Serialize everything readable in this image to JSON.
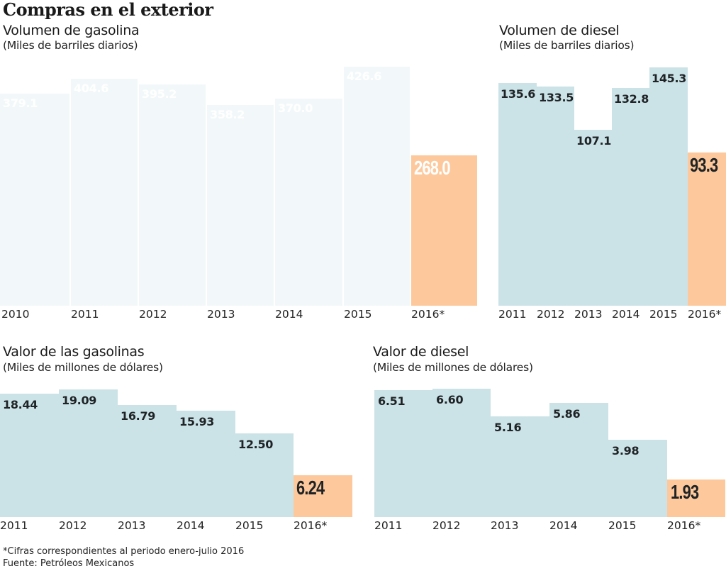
{
  "page": {
    "title": "Compras en el exterior",
    "footnote": "*Cifras correspondientes al periodo enero-julio 2016",
    "source": "Fuente: Petróleos Mexicanos"
  },
  "colors": {
    "historical": "#cbe3e7",
    "partial_year": "#fdc99c",
    "label_dark": "#1f2326",
    "label_light": "#ffffff"
  },
  "chart_data": [
    {
      "id": "gasoline_volume",
      "type": "bar",
      "title": "Volumen de gasolina",
      "subtitle": "(Miles de barriles diarios)",
      "xlabel": "",
      "ylabel": "Miles de barriles diarios",
      "categories": [
        "2010",
        "2011",
        "2012",
        "2013",
        "2014",
        "2015",
        "2016*"
      ],
      "values": [
        379.1,
        404.6,
        395.2,
        358.2,
        370.0,
        426.6,
        268.0
      ],
      "labels": [
        "379.1",
        "404.6",
        "395.2",
        "358.2",
        "370.0",
        "426.6",
        "268.0"
      ],
      "highlight_index": 6,
      "background": "photo",
      "grid": false,
      "legend": "none"
    },
    {
      "id": "diesel_volume",
      "type": "bar",
      "title": "Volumen de diesel",
      "subtitle": "(Miles de barriles diarios)",
      "xlabel": "",
      "ylabel": "Miles de barriles diarios",
      "categories": [
        "2011",
        "2012",
        "2013",
        "2014",
        "2015",
        "2016*"
      ],
      "values": [
        135.6,
        133.5,
        107.1,
        132.8,
        145.3,
        93.3
      ],
      "labels": [
        "135.6",
        "133.5",
        "107.1",
        "132.8",
        "145.3",
        "93.3"
      ],
      "highlight_index": 5,
      "grid": false,
      "legend": "none"
    },
    {
      "id": "gasoline_value",
      "type": "bar",
      "title": "Valor de las gasolinas",
      "subtitle": "(Miles de millones de dólares)",
      "xlabel": "",
      "ylabel": "Miles de millones de dólares",
      "categories": [
        "2011",
        "2012",
        "2013",
        "2014",
        "2015",
        "2016*"
      ],
      "values": [
        18.44,
        19.09,
        16.79,
        15.93,
        12.5,
        6.24
      ],
      "labels": [
        "18.44",
        "19.09",
        "16.79",
        "15.93",
        "12.50",
        "6.24"
      ],
      "highlight_index": 5,
      "grid": false,
      "legend": "none"
    },
    {
      "id": "diesel_value",
      "type": "bar",
      "title": "Valor de diesel",
      "subtitle": "(Miles de millones de dólares)",
      "xlabel": "",
      "ylabel": "Miles de millones de dólares",
      "categories": [
        "2011",
        "2012",
        "2013",
        "2014",
        "2015",
        "2016*"
      ],
      "values": [
        6.51,
        6.6,
        5.16,
        5.86,
        3.98,
        1.93
      ],
      "labels": [
        "6.51",
        "6.60",
        "5.16",
        "5.86",
        "3.98",
        "1.93"
      ],
      "highlight_index": 5,
      "grid": false,
      "legend": "none"
    }
  ]
}
